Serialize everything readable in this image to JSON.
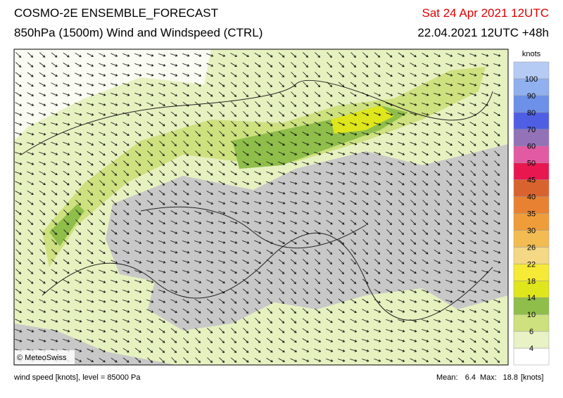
{
  "header": {
    "title": "COSMO-2E ENSEMBLE_FORECAST",
    "subtitle": "850hPa (1500m) Wind and Windspeed (CTRL)",
    "valid_time": "Sat 24 Apr 2021 12UTC",
    "run_time": "22.04.2021 12UTC +48h"
  },
  "map": {
    "copyright": "© MeteoSwiss"
  },
  "legend": {
    "unit": "knots",
    "labels": [
      4,
      6,
      10,
      14,
      18,
      22,
      26,
      30,
      35,
      40,
      45,
      50,
      60,
      70,
      80,
      90,
      100
    ],
    "colors": [
      "#ffffff",
      "#e8f2c4",
      "#cde17f",
      "#8fbe4a",
      "#dfe61c",
      "#f7ea36",
      "#f4d886",
      "#f3bc52",
      "#ef9d3a",
      "#e88232",
      "#d9632e",
      "#e8174f",
      "#e25aa2",
      "#9372b8",
      "#4f5fe4",
      "#6d90e8",
      "#90b0f0",
      "#b6cbf4"
    ]
  },
  "footer": {
    "description": "wind speed [knots], level = 85000 Pa",
    "mean_label": "Mean:",
    "mean_value": 6.4,
    "max_label": "Max:",
    "max_value": 18.8,
    "unit": "[knots]"
  }
}
